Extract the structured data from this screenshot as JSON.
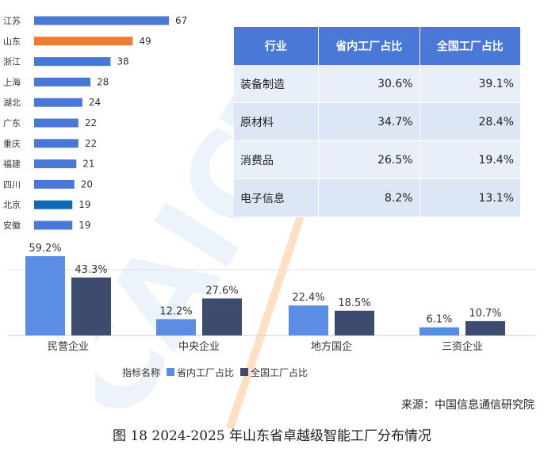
{
  "watermark": "CAICT 中国",
  "chart_data": [
    {
      "type": "bar",
      "orientation": "horizontal",
      "categories": [
        "江苏",
        "山东",
        "浙江",
        "上海",
        "湖北",
        "广东",
        "重庆",
        "福建",
        "四川",
        "北京",
        "安徽"
      ],
      "values": [
        67,
        49,
        38,
        28,
        24,
        22,
        22,
        21,
        20,
        19,
        19
      ],
      "highlight": {
        "山东": "#ed7d31",
        "北京": "#0e6ab5"
      },
      "default_color": "#4a78d6"
    },
    {
      "type": "table",
      "columns": [
        "行业",
        "省内工厂占比",
        "全国工厂占比"
      ],
      "rows": [
        [
          "装备制造",
          "30.6%",
          "39.1%"
        ],
        [
          "原材料",
          "34.7%",
          "28.4%"
        ],
        [
          "消费品",
          "26.5%",
          "19.4%"
        ],
        [
          "电子信息",
          "8.2%",
          "13.1%"
        ]
      ]
    },
    {
      "type": "bar",
      "categories": [
        "民营企业",
        "中央企业",
        "地方国企",
        "三资企业"
      ],
      "series": [
        {
          "name": "省内工厂占比",
          "values": [
            59.2,
            12.2,
            22.4,
            6.1
          ],
          "color": "#5b8de4"
        },
        {
          "name": "全国工厂占比",
          "values": [
            43.3,
            27.6,
            18.5,
            10.7
          ],
          "color": "#3d4b6e"
        }
      ],
      "unit": "%",
      "legend_title": "指标名称",
      "legend_position": "bottom"
    }
  ],
  "source": "来源：中国信息通信研究院",
  "caption": "图  18 2024-2025 年山东省卓越级智能工厂分布情况"
}
